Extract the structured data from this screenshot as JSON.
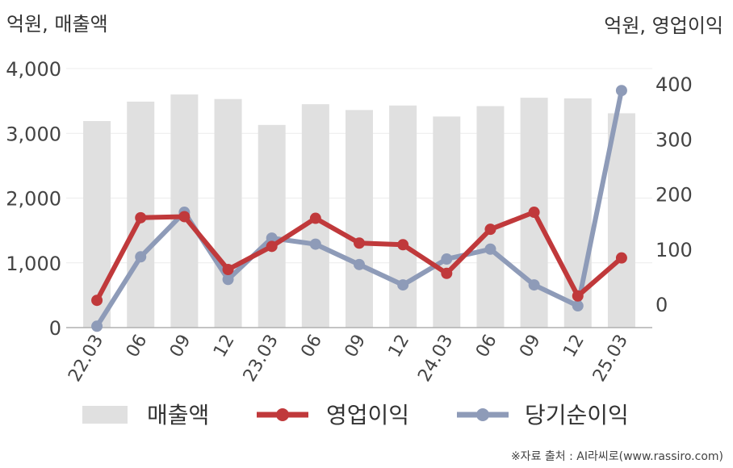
{
  "chart_data": {
    "type": "bar+line",
    "left_axis_label": "억원, 매출액",
    "right_axis_label": "억원, 영업이익",
    "categories": [
      "22.03",
      "06",
      "09",
      "12",
      "23.03",
      "06",
      "09",
      "12",
      "24.03",
      "06",
      "09",
      "12",
      "25.03"
    ],
    "left_axis": {
      "ylim": [
        0,
        4000
      ],
      "ticks": [
        "0",
        "1,000",
        "2,000",
        "3,000",
        "4,000"
      ]
    },
    "right_axis": {
      "ylim": [
        -45,
        430
      ],
      "ticks": [
        "0",
        "100",
        "200",
        "300",
        "400"
      ]
    },
    "series": [
      {
        "name": "매출액",
        "type": "bar",
        "axis": "left",
        "color": "#e0e0e0",
        "values": [
          3190,
          3490,
          3600,
          3530,
          3130,
          3450,
          3360,
          3430,
          3260,
          3420,
          3550,
          3540,
          3310
        ]
      },
      {
        "name": "영업이익",
        "type": "line",
        "axis": "right",
        "color": "#c0393b",
        "values": [
          7,
          157,
          159,
          63,
          105,
          156,
          111,
          108,
          56,
          136,
          167,
          15,
          84
        ]
      },
      {
        "name": "당기순이익",
        "type": "line",
        "axis": "right",
        "color": "#8e9bb8",
        "values": [
          -40,
          86,
          167,
          45,
          120,
          109,
          72,
          35,
          82,
          100,
          35,
          -3,
          388
        ]
      }
    ],
    "grid": true,
    "legend_position": "bottom"
  },
  "source": "※자료 출처 : AI라씨로(www.rassiro.com)"
}
